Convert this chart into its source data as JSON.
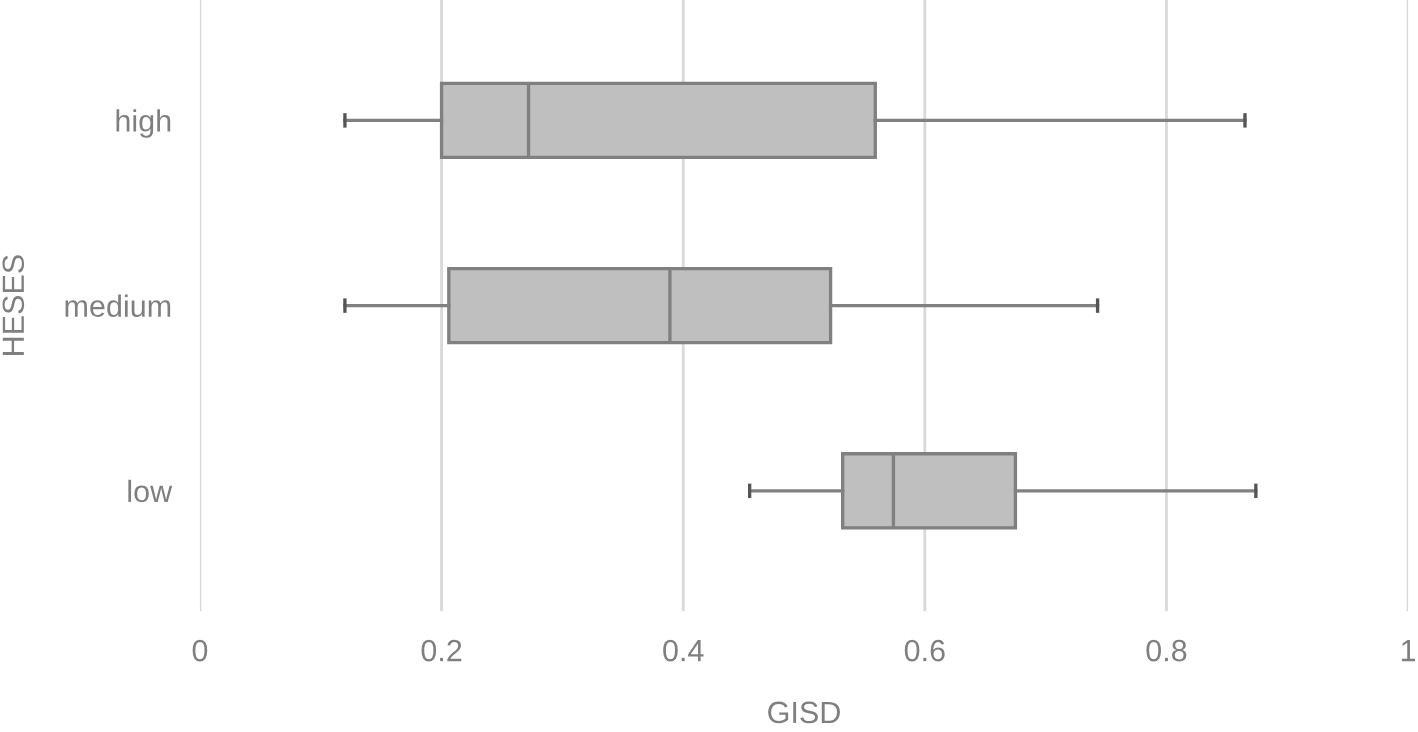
{
  "chart_data": {
    "type": "box",
    "orientation": "horizontal",
    "xlabel": "GISD",
    "ylabel": "HESES",
    "categories": [
      "high",
      "medium",
      "low"
    ],
    "color": "#bfbfbf",
    "boxes": [
      {
        "low": 0.12,
        "q1": 0.2,
        "median": 0.272,
        "q3": 0.559,
        "high": 0.865
      },
      {
        "low": 0.12,
        "q1": 0.206,
        "median": 0.389,
        "q3": 0.522,
        "high": 0.743
      },
      {
        "low": 0.455,
        "q1": 0.532,
        "median": 0.574,
        "q3": 0.675,
        "high": 0.874
      }
    ],
    "xlim": [
      0,
      1
    ],
    "xticks": [
      0,
      0.2,
      0.4,
      0.6,
      0.8,
      1
    ],
    "grid": "x",
    "legend": false
  }
}
